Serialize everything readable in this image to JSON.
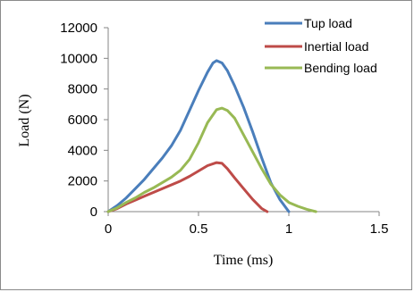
{
  "chart_data": {
    "type": "line",
    "title": "",
    "xlabel": "Time (ms)",
    "ylabel": "Load (N)",
    "xlim": [
      0,
      1.5
    ],
    "ylim": [
      0,
      12000
    ],
    "xticks": [
      "0",
      "0.5",
      "1",
      "1.5"
    ],
    "xtick_values": [
      0,
      0.5,
      1,
      1.5
    ],
    "yticks": [
      "0",
      "2000",
      "4000",
      "6000",
      "8000",
      "10000",
      "12000"
    ],
    "ytick_values": [
      0,
      2000,
      4000,
      6000,
      8000,
      10000,
      12000
    ],
    "grid": false,
    "legend_position": "top-right",
    "series": [
      {
        "name": "Tup load",
        "color": "#4a7ebb",
        "x": [
          0,
          0.05,
          0.1,
          0.15,
          0.2,
          0.25,
          0.3,
          0.35,
          0.4,
          0.45,
          0.5,
          0.55,
          0.58,
          0.6,
          0.63,
          0.66,
          0.7,
          0.75,
          0.8,
          0.85,
          0.9,
          0.95,
          1.0
        ],
        "y": [
          0,
          400,
          900,
          1500,
          2100,
          2800,
          3500,
          4300,
          5300,
          6600,
          7900,
          9100,
          9700,
          9850,
          9700,
          9200,
          8200,
          6800,
          5200,
          3500,
          1900,
          800,
          0
        ]
      },
      {
        "name": "Inertial load",
        "color": "#be4b48",
        "x": [
          0,
          0.05,
          0.1,
          0.15,
          0.2,
          0.25,
          0.3,
          0.35,
          0.4,
          0.45,
          0.5,
          0.55,
          0.6,
          0.63,
          0.66,
          0.7,
          0.75,
          0.8,
          0.85,
          0.88
        ],
        "y": [
          0,
          200,
          500,
          750,
          1000,
          1250,
          1500,
          1750,
          2000,
          2300,
          2650,
          3000,
          3200,
          3150,
          2800,
          2200,
          1500,
          800,
          200,
          0
        ]
      },
      {
        "name": "Bending load",
        "color": "#98b954",
        "x": [
          0,
          0.05,
          0.1,
          0.15,
          0.2,
          0.25,
          0.3,
          0.35,
          0.4,
          0.45,
          0.5,
          0.55,
          0.6,
          0.63,
          0.66,
          0.7,
          0.75,
          0.8,
          0.85,
          0.9,
          0.95,
          1.0,
          1.05,
          1.1,
          1.15
        ],
        "y": [
          0,
          250,
          600,
          900,
          1250,
          1550,
          1900,
          2250,
          2700,
          3400,
          4500,
          5800,
          6650,
          6750,
          6600,
          6100,
          5000,
          3900,
          2800,
          1800,
          1100,
          600,
          350,
          150,
          0
        ]
      }
    ]
  }
}
